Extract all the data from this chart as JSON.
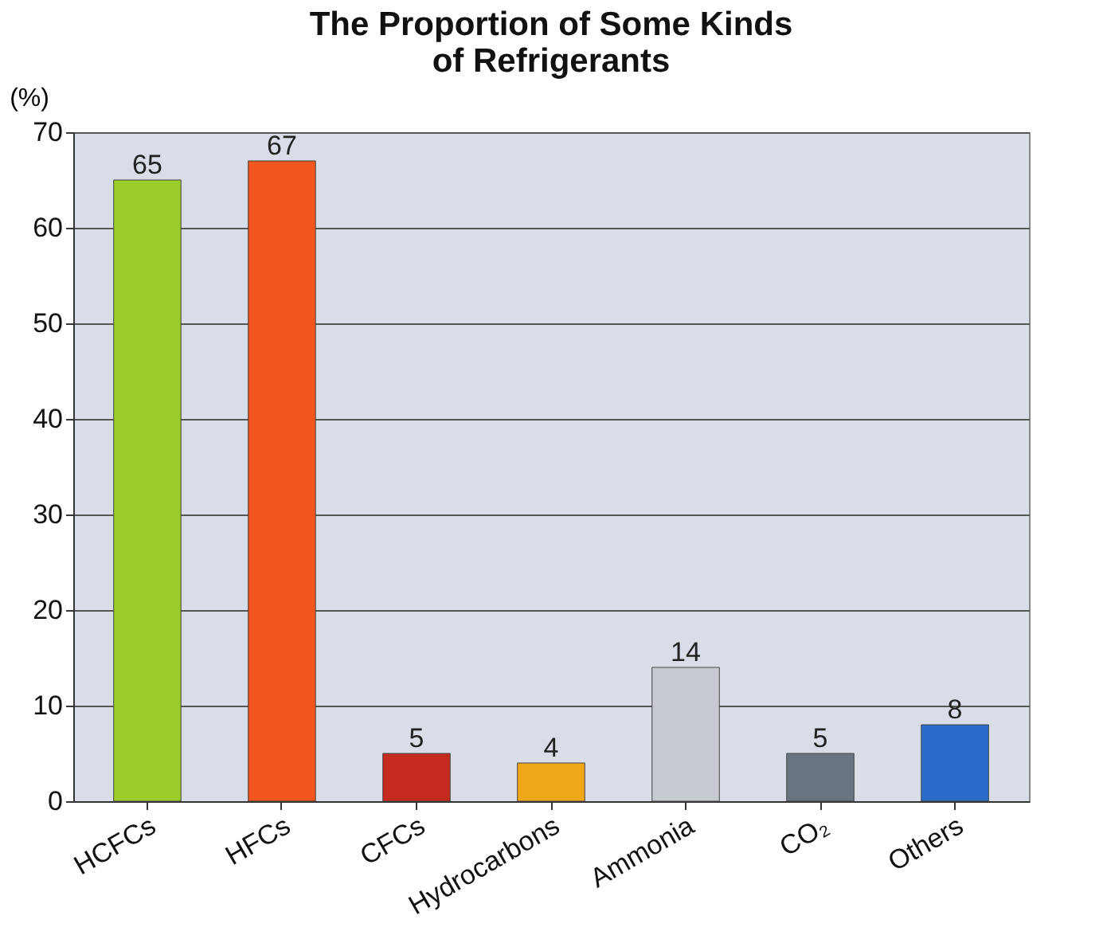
{
  "chart_data": {
    "type": "bar",
    "title": [
      "The Proportion of Some Kinds",
      "of Refrigerants"
    ],
    "ylabel": "(%)",
    "categories": [
      "HCFCs",
      "HFCs",
      "CFCs",
      "Hydrocarbons",
      "Ammonia",
      "CO₂",
      "Others"
    ],
    "values": [
      65,
      67,
      5,
      4,
      14,
      5,
      8
    ],
    "colors": [
      "#9ccc2a",
      "#f0561e",
      "#c42a1e",
      "#f0a818",
      "#c8cad2",
      "#6a7480",
      "#2a6cc8"
    ],
    "ylim": [
      0,
      70
    ],
    "yticks": [
      0,
      10,
      20,
      30,
      40,
      50,
      60,
      70
    ],
    "grid": "y",
    "data_labels": true
  }
}
